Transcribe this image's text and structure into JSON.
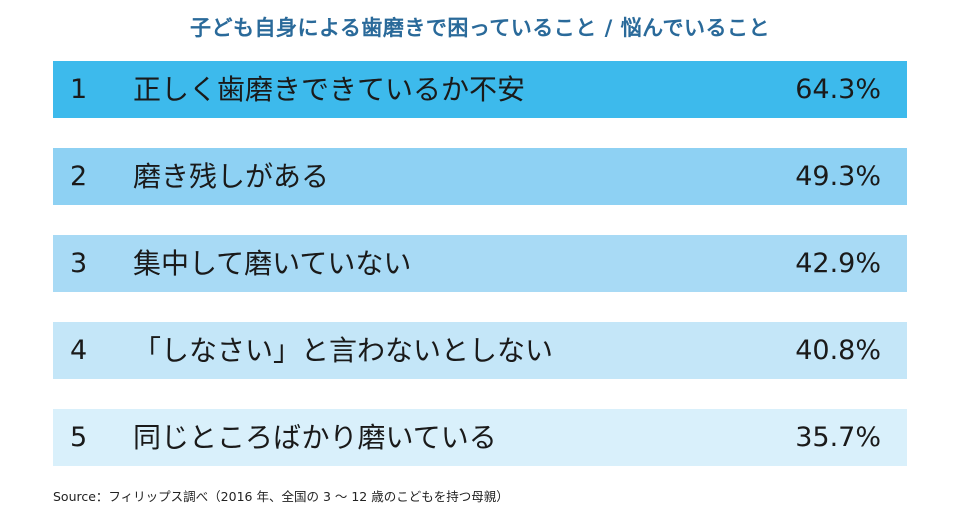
{
  "title": "子ども自身による歯磨きで困っていること / 悩んでいること",
  "source": "Source：フィリップス調べ（2016 年、全国の 3 ～ 12 歳のこどもを持つ母親）",
  "colors": [
    "#3dbaec",
    "#8ed1f3",
    "#a8daf5",
    "#c4e6f8",
    "#d9f0fb"
  ],
  "chart_data": {
    "type": "table",
    "title": "子ども自身による歯磨きで困っていること / 悩んでいること",
    "ranks": [
      "1",
      "2",
      "3",
      "4",
      "5"
    ],
    "categories": [
      "正しく歯磨きできているか不安",
      "磨き残しがある",
      "集中して磨いていない",
      "「しなさい」と言わないとしない",
      "同じところばかり磨いている"
    ],
    "values": [
      64.3,
      49.3,
      42.9,
      40.8,
      35.7
    ],
    "value_labels": [
      "64.3%",
      "49.3%",
      "42.9%",
      "40.8%",
      "35.7%"
    ]
  }
}
